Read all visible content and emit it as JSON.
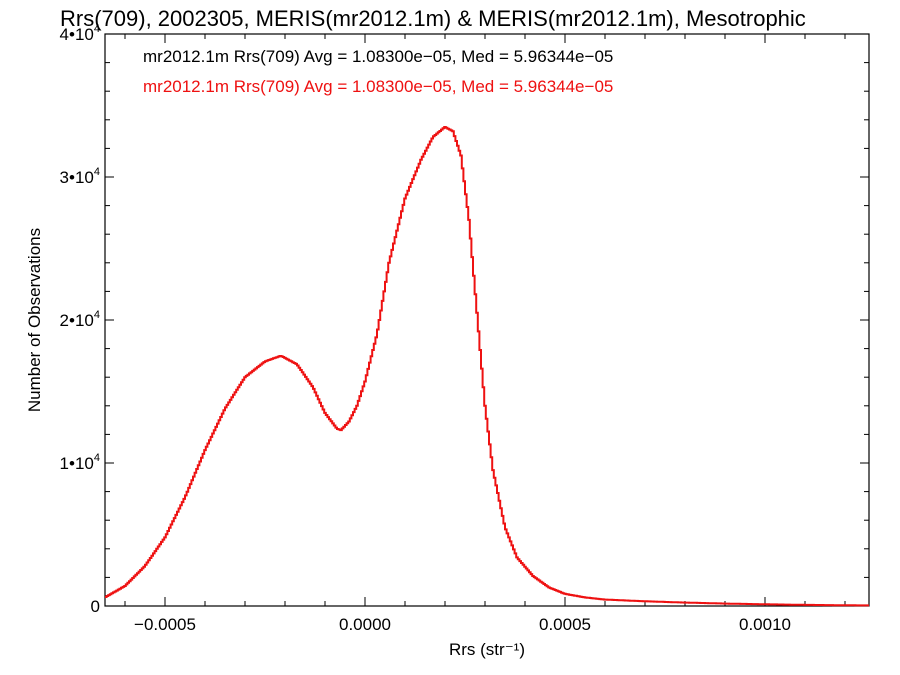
{
  "chart_data": {
    "type": "line",
    "title": "Rrs(709), 2002305, MERIS(mr2012.1m) & MERIS(mr2012.1m), Mesotrophic",
    "xlabel": "Rrs (str⁻¹)",
    "ylabel": "Number of Observations",
    "xlim": [
      -0.00065,
      0.00126
    ],
    "ylim": [
      0,
      40000
    ],
    "x_ticks": [
      {
        "value": -0.0005,
        "label": "−0.0005"
      },
      {
        "value": 0.0,
        "label": "0.0000"
      },
      {
        "value": 0.0005,
        "label": "0.0005"
      },
      {
        "value": 0.001,
        "label": "0.0010"
      }
    ],
    "y_ticks": [
      {
        "value": 0,
        "base": "0",
        "exp": ""
      },
      {
        "value": 10000,
        "base": "1•10",
        "exp": "4"
      },
      {
        "value": 20000,
        "base": "2•10",
        "exp": "4"
      },
      {
        "value": 30000,
        "base": "3•10",
        "exp": "4"
      },
      {
        "value": 40000,
        "base": "4•10",
        "exp": "4"
      }
    ],
    "legend": [
      {
        "text": "mr2012.1m Rrs(709) Avg = 1.08300e−05, Med = 5.96344e−05",
        "color": "#000000"
      },
      {
        "text": "mr2012.1m Rrs(709) Avg = 1.08300e−05, Med = 5.96344e−05",
        "color": "#ee1111"
      }
    ],
    "series": [
      {
        "color": "#ee1111",
        "points": [
          [
            -0.00065,
            600
          ],
          [
            -0.0006,
            1400
          ],
          [
            -0.00055,
            2800
          ],
          [
            -0.0005,
            4800
          ],
          [
            -0.00045,
            7600
          ],
          [
            -0.0004,
            10900
          ],
          [
            -0.00035,
            13800
          ],
          [
            -0.0003,
            16000
          ],
          [
            -0.00025,
            17100
          ],
          [
            -0.00021,
            17500
          ],
          [
            -0.00017,
            16900
          ],
          [
            -0.00013,
            15300
          ],
          [
            -0.0001,
            13500
          ],
          [
            -7e-05,
            12400
          ],
          [
            -6e-05,
            12300
          ],
          [
            -4e-05,
            12900
          ],
          [
            -2e-05,
            14000
          ],
          [
            0.0,
            15700
          ],
          [
            3e-05,
            19000
          ],
          [
            6e-05,
            24000
          ],
          [
            0.0001,
            28500
          ],
          [
            0.00014,
            31200
          ],
          [
            0.00017,
            32800
          ],
          [
            0.0002,
            33500
          ],
          [
            0.00022,
            33200
          ],
          [
            0.00024,
            31500
          ],
          [
            0.00026,
            27000
          ],
          [
            0.00028,
            20500
          ],
          [
            0.0003,
            14000
          ],
          [
            0.00032,
            9500
          ],
          [
            0.00035,
            5500
          ],
          [
            0.00038,
            3400
          ],
          [
            0.00042,
            2100
          ],
          [
            0.00046,
            1300
          ],
          [
            0.0005,
            850
          ],
          [
            0.00055,
            600
          ],
          [
            0.0006,
            450
          ],
          [
            0.0007,
            330
          ],
          [
            0.0008,
            240
          ],
          [
            0.0009,
            170
          ],
          [
            0.001,
            120
          ],
          [
            0.0011,
            80
          ],
          [
            0.0012,
            50
          ],
          [
            0.00126,
            40
          ]
        ]
      }
    ]
  }
}
